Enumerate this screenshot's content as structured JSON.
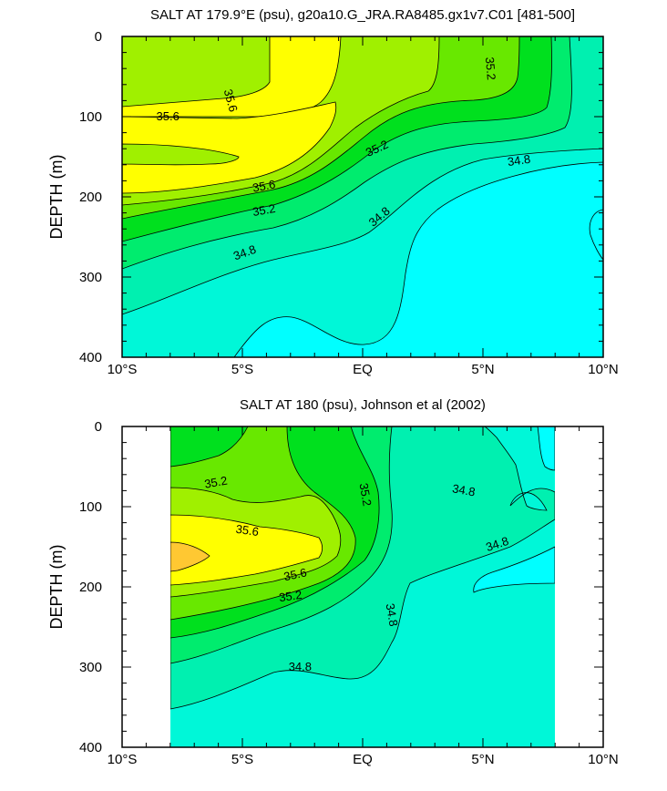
{
  "colors": {
    "c34_4": "#00ffff",
    "c34_6": "#00f7d8",
    "c34_8": "#00f0b0",
    "c35_0": "#00ec6e",
    "c35_2": "#00e01e",
    "c35_4": "#68e800",
    "c35_6": "#a0f000",
    "c35_8": "#ffff00",
    "c36_0": "#ffc832",
    "line": "#000000"
  },
  "chart_data": [
    {
      "type": "contour",
      "title": "SALT AT 179.9°E (psu), g20a10.G_JRA.RA8485.gx1v7.C01 [481-500]",
      "xlabel": "",
      "ylabel": "DEPTH (m)",
      "xlim": [
        -10,
        10
      ],
      "ylim": [
        400,
        0
      ],
      "data_xlim": [
        -10,
        10
      ],
      "x_ticks": [
        "10°S",
        "5°S",
        "EQ",
        "5°N",
        "10°N"
      ],
      "y_ticks": [
        "0",
        "100",
        "200",
        "300",
        "400"
      ],
      "contour_labels": [
        {
          "text": "35.6",
          "x": -8.1,
          "y": 100,
          "rot": 0
        },
        {
          "text": "35.6",
          "x": -5.5,
          "y": 80,
          "rot": 75
        },
        {
          "text": "35.6",
          "x": -4.1,
          "y": 187,
          "rot": -10
        },
        {
          "text": "35.2",
          "x": -4.1,
          "y": 217,
          "rot": -10
        },
        {
          "text": "35.2",
          "x": 0.6,
          "y": 140,
          "rot": -25
        },
        {
          "text": "35.2",
          "x": 5.3,
          "y": 40,
          "rot": 85
        },
        {
          "text": "34.8",
          "x": -4.9,
          "y": 270,
          "rot": -20
        },
        {
          "text": "34.8",
          "x": 0.7,
          "y": 225,
          "rot": -40
        },
        {
          "text": "34.8",
          "x": 6.5,
          "y": 155,
          "rot": -8
        }
      ]
    },
    {
      "type": "contour",
      "title": "SALT AT 180 (psu), Johnson et al (2002)",
      "xlabel": "",
      "ylabel": "DEPTH (m)",
      "xlim": [
        -10,
        10
      ],
      "ylim": [
        400,
        0
      ],
      "data_xlim": [
        -8,
        8
      ],
      "x_ticks": [
        "10°S",
        "5°S",
        "EQ",
        "5°N",
        "10°N"
      ],
      "y_ticks": [
        "0",
        "100",
        "200",
        "300",
        "400"
      ],
      "contour_labels": [
        {
          "text": "35.2",
          "x": -6.1,
          "y": 70,
          "rot": -10
        },
        {
          "text": "35.2",
          "x": 0.1,
          "y": 85,
          "rot": 80
        },
        {
          "text": "35.6",
          "x": -4.8,
          "y": 130,
          "rot": 8
        },
        {
          "text": "35.6",
          "x": -2.8,
          "y": 185,
          "rot": -12
        },
        {
          "text": "35.2",
          "x": -3.0,
          "y": 212,
          "rot": -8
        },
        {
          "text": "34.8",
          "x": 1.2,
          "y": 235,
          "rot": 80
        },
        {
          "text": "34.8",
          "x": 4.2,
          "y": 80,
          "rot": 10
        },
        {
          "text": "34.8",
          "x": 5.6,
          "y": 147,
          "rot": -18
        },
        {
          "text": "34.8",
          "x": -2.6,
          "y": 300,
          "rot": 0
        }
      ]
    }
  ]
}
